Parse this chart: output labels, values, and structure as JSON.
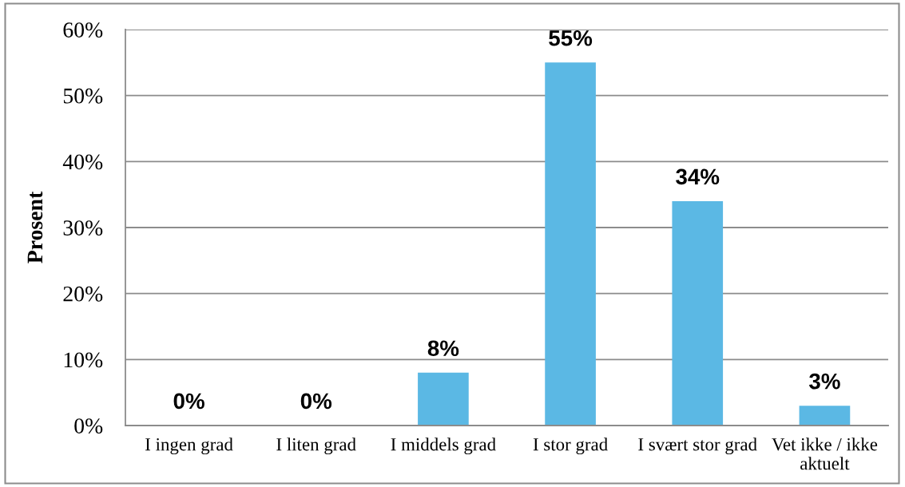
{
  "chart_data": {
    "type": "bar",
    "ylabel": "Prosent",
    "categories": [
      "I ingen grad",
      "I liten grad",
      "I middels grad",
      "I stor grad",
      "I svært stor grad",
      "Vet ikke / ikke aktuelt"
    ],
    "values": [
      0,
      0,
      8,
      55,
      34,
      3
    ],
    "value_labels": [
      "0%",
      "0%",
      "8%",
      "55%",
      "34%",
      "3%"
    ],
    "color": "#5bb8e4",
    "ylim": [
      0,
      60
    ],
    "yticks": [
      {
        "value": 0,
        "label": "0%"
      },
      {
        "value": 10,
        "label": "10%"
      },
      {
        "value": 20,
        "label": "20%"
      },
      {
        "value": 30,
        "label": "30%"
      },
      {
        "value": 40,
        "label": "40%"
      },
      {
        "value": 50,
        "label": "50%"
      },
      {
        "value": 60,
        "label": "60%"
      }
    ],
    "grid": "y"
  }
}
